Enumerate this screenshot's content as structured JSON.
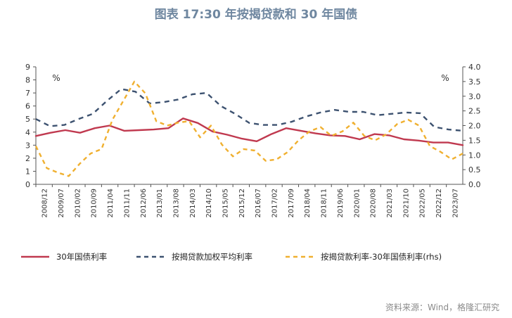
{
  "title": "图表 17:30 年按揭贷款和 30 年国债",
  "source": "资料来源：Wind，格隆汇研究",
  "chart_data": {
    "type": "line",
    "title": "图表 17:30 年按揭贷款和 30 年国债",
    "left_unit": "%",
    "right_unit": "%",
    "left_ylim": [
      0,
      9
    ],
    "left_ticks": [
      "0",
      "1",
      "2",
      "3",
      "4",
      "5",
      "6",
      "7",
      "8",
      "9"
    ],
    "right_ylim": [
      0,
      4.0
    ],
    "right_ticks": [
      "0.0",
      "0.5",
      "1.0",
      "1.5",
      "2.0",
      "2.5",
      "3.0",
      "3.5",
      "4.0"
    ],
    "x_tick_labels": [
      "2008/12",
      "2009/07",
      "2010/02",
      "2010/09",
      "2011/04",
      "2011/11",
      "2012/06",
      "2013/01",
      "2013/08",
      "2014/03",
      "2014/10",
      "2015/05",
      "2015/12",
      "2016/07",
      "2017/02",
      "2017/09",
      "2018/04",
      "2018/11",
      "2019/06",
      "2020/01",
      "2020/08",
      "2021/03",
      "2021/10",
      "2022/05",
      "2022/12",
      "2023/07"
    ],
    "grid": false,
    "legend_position": "bottom",
    "series": [
      {
        "name": "30年国债利率",
        "axis": "left",
        "color": "#c0394f",
        "style": "solid",
        "values": [
          3.7,
          3.95,
          4.15,
          3.95,
          4.3,
          4.5,
          4.1,
          4.15,
          4.2,
          4.3,
          5.05,
          4.7,
          4.05,
          3.8,
          3.5,
          3.3,
          3.85,
          4.3,
          4.1,
          3.9,
          3.75,
          3.7,
          3.45,
          3.85,
          3.75,
          3.45,
          3.35,
          3.2,
          3.2,
          3.0
        ]
      },
      {
        "name": "按揭贷款加权平均利率",
        "axis": "left",
        "color": "#3d5270",
        "style": "dashed",
        "values": [
          5.0,
          4.45,
          4.55,
          5.0,
          5.4,
          6.4,
          7.3,
          7.1,
          6.2,
          6.3,
          6.5,
          6.9,
          7.0,
          6.0,
          5.4,
          4.7,
          4.55,
          4.55,
          4.8,
          5.2,
          5.5,
          5.7,
          5.55,
          5.55,
          5.3,
          5.4,
          5.5,
          5.45,
          4.4,
          4.2,
          4.1
        ]
      },
      {
        "name": "按揭贷款利率-30年国债利率(rhs)",
        "axis": "right",
        "color": "#f0b030",
        "style": "dashed",
        "values": [
          1.3,
          0.55,
          0.4,
          0.28,
          0.7,
          1.05,
          1.2,
          2.2,
          2.85,
          3.5,
          3.1,
          2.15,
          2.0,
          2.1,
          2.15,
          1.6,
          2.0,
          1.35,
          0.95,
          1.2,
          1.15,
          0.8,
          0.85,
          1.1,
          1.5,
          1.8,
          1.95,
          1.65,
          1.8,
          2.1,
          1.65,
          1.5,
          1.7,
          2.05,
          2.2,
          2.0,
          1.3,
          1.1,
          0.85,
          1.05
        ]
      }
    ]
  }
}
